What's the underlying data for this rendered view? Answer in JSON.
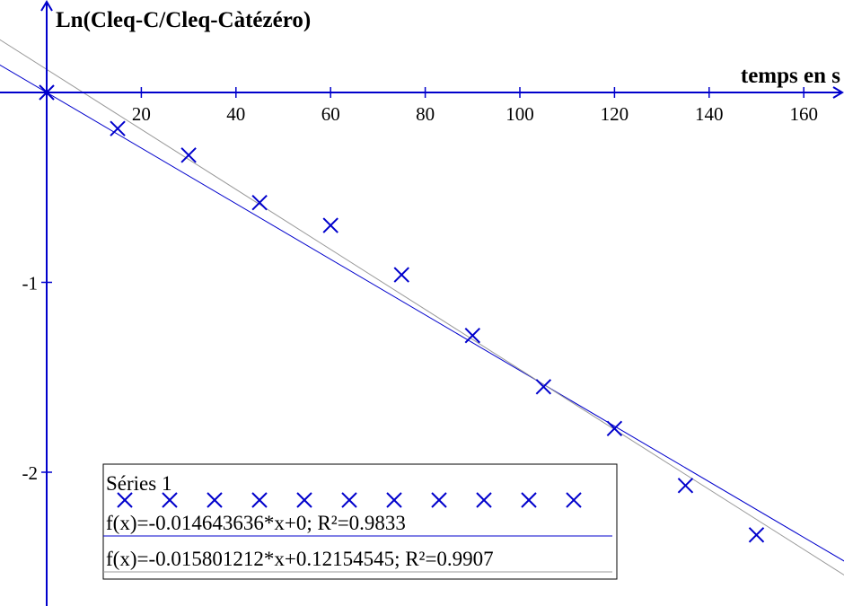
{
  "chart_data": {
    "type": "scatter",
    "title": "",
    "xlabel": "temps en s",
    "ylabel": "Ln(Cleq-C/Cleq-Càtézéro)",
    "xlim": [
      -10,
      170
    ],
    "ylim": [
      -2.7,
      0.45
    ],
    "x_ticks": [
      20,
      40,
      60,
      80,
      100,
      120,
      140,
      160
    ],
    "y_ticks": [
      -1,
      -2
    ],
    "grid": false,
    "legend_position": "bottom-left",
    "colors": {
      "series": "#0000cc",
      "fit_2": "#0000cc",
      "fit_1": "#999999",
      "axes": "#0000cc"
    },
    "series": [
      {
        "name": "Séries 1",
        "marker": "x",
        "points": [
          {
            "x": 0,
            "y": 0
          },
          {
            "x": 15,
            "y": -0.19
          },
          {
            "x": 30,
            "y": -0.33
          },
          {
            "x": 45,
            "y": -0.58
          },
          {
            "x": 60,
            "y": -0.7
          },
          {
            "x": 75,
            "y": -0.96
          },
          {
            "x": 90,
            "y": -1.28
          },
          {
            "x": 105,
            "y": -1.55
          },
          {
            "x": 120,
            "y": -1.77
          },
          {
            "x": 135,
            "y": -2.07
          },
          {
            "x": 150,
            "y": -2.33
          }
        ]
      }
    ],
    "fits": [
      {
        "label": "f(x)=-0.014643636*x+0; R²=0.9833",
        "slope": -0.014643636,
        "intercept": 0,
        "color": "#0000cc"
      },
      {
        "label": "f(x)=-0.015801212*x+0.12154545; R²=0.9907",
        "slope": -0.015801212,
        "intercept": 0.12154545,
        "color": "#999999"
      }
    ]
  }
}
